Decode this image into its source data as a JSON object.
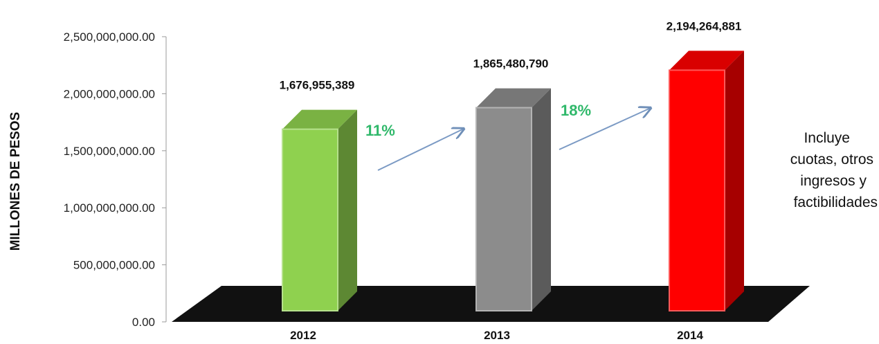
{
  "chart_data": {
    "type": "bar",
    "title": "",
    "xlabel": "",
    "ylabel": "MILLONES DE PESOS",
    "categories": [
      "2012",
      "2013",
      "2014"
    ],
    "values": [
      1676955389,
      1865480790,
      2194264881
    ],
    "value_labels": [
      "1,676,955,389",
      "1,865,480,790",
      "2,194,264,881"
    ],
    "bar_colors": [
      "#8fd14f",
      "#8c8c8c",
      "#ff0000"
    ],
    "ylim": [
      0,
      2500000000
    ],
    "yticks": [
      0,
      500000000,
      1000000000,
      1500000000,
      2000000000,
      2500000000
    ],
    "ytick_labels": [
      "0.00",
      "500,000,000.00",
      "1,000,000,000.00",
      "1,500,000,000.00",
      "2,000,000,000.00",
      "2,500,000,000.00"
    ],
    "grid": false,
    "legend": "none",
    "growth_annotations": [
      {
        "label": "11%",
        "color": "#2fb86a"
      },
      {
        "label": "18%",
        "color": "#2fb86a"
      }
    ],
    "note_lines": [
      "Incluye",
      "cuotas, otros",
      "ingresos y",
      "factibilidades"
    ],
    "floor_color": "#111111"
  }
}
